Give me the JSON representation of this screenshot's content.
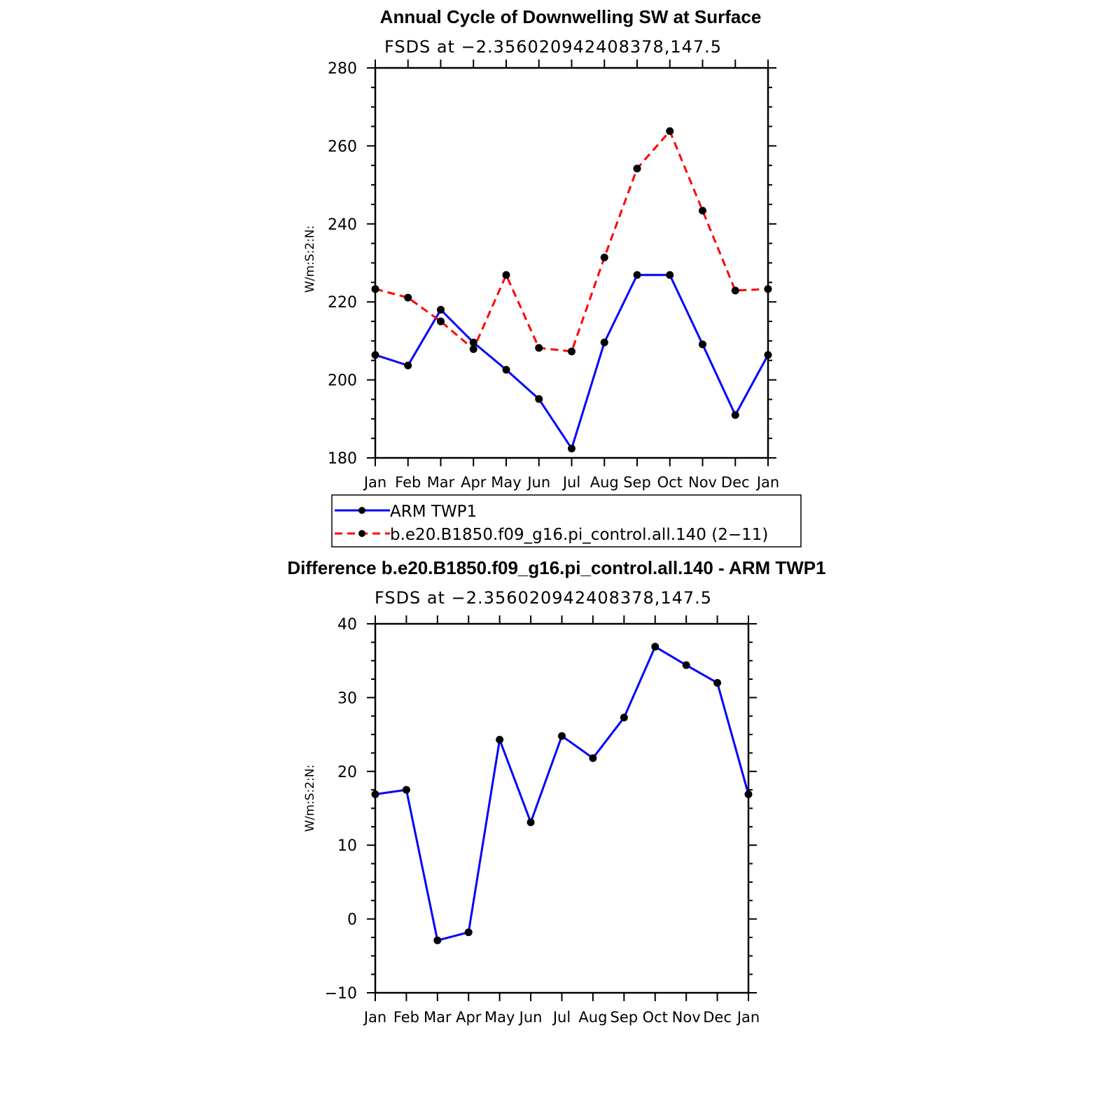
{
  "chart_data": [
    {
      "type": "line",
      "title": "Annual Cycle of Downwelling SW at Surface",
      "subtitle": "FSDS at −2.356020942408378,147.5",
      "ylabel": "W/m:S:2:N:",
      "ylim": [
        180,
        280
      ],
      "yticks": [
        180,
        200,
        220,
        240,
        260,
        280
      ],
      "categories": [
        "Jan",
        "Feb",
        "Mar",
        "Apr",
        "May",
        "Jun",
        "Jul",
        "Aug",
        "Sep",
        "Oct",
        "Nov",
        "Dec",
        "Jan"
      ],
      "grid": false,
      "series": [
        {
          "name": "ARM TWP1",
          "color": "#0000ff",
          "dash": "solid",
          "values": [
            206.4,
            203.7,
            218.0,
            209.6,
            202.6,
            195.1,
            182.4,
            209.6,
            226.9,
            226.9,
            209.1,
            191.0,
            206.4
          ]
        },
        {
          "name": "b.e20.B1850.f09_g16.pi_control.all.140 (2−11)",
          "color": "#ff0000",
          "dash": "dashed",
          "values": [
            223.3,
            221.1,
            215.0,
            207.9,
            226.9,
            208.2,
            207.3,
            231.4,
            254.2,
            263.8,
            243.4,
            222.9,
            223.3
          ]
        }
      ],
      "legend_position": "bottom"
    },
    {
      "type": "line",
      "title": "Difference b.e20.B1850.f09_g16.pi_control.all.140 - ARM TWP1",
      "subtitle": "FSDS at −2.356020942408378,147.5",
      "ylabel": "W/m:S:2:N:",
      "ylim": [
        -10,
        40
      ],
      "yticks": [
        -10,
        0,
        10,
        20,
        30,
        40
      ],
      "ytick_labels": [
        "−10",
        "0",
        "10",
        "20",
        "30",
        "40"
      ],
      "categories": [
        "Jan",
        "Feb",
        "Mar",
        "Apr",
        "May",
        "Jun",
        "Jul",
        "Aug",
        "Sep",
        "Oct",
        "Nov",
        "Dec",
        "Jan"
      ],
      "grid": false,
      "series": [
        {
          "color": "#0000ff",
          "dash": "solid",
          "values": [
            16.9,
            17.5,
            -2.9,
            -1.8,
            24.3,
            13.1,
            24.8,
            21.8,
            27.3,
            36.9,
            34.4,
            32.0,
            16.9
          ]
        }
      ]
    }
  ]
}
